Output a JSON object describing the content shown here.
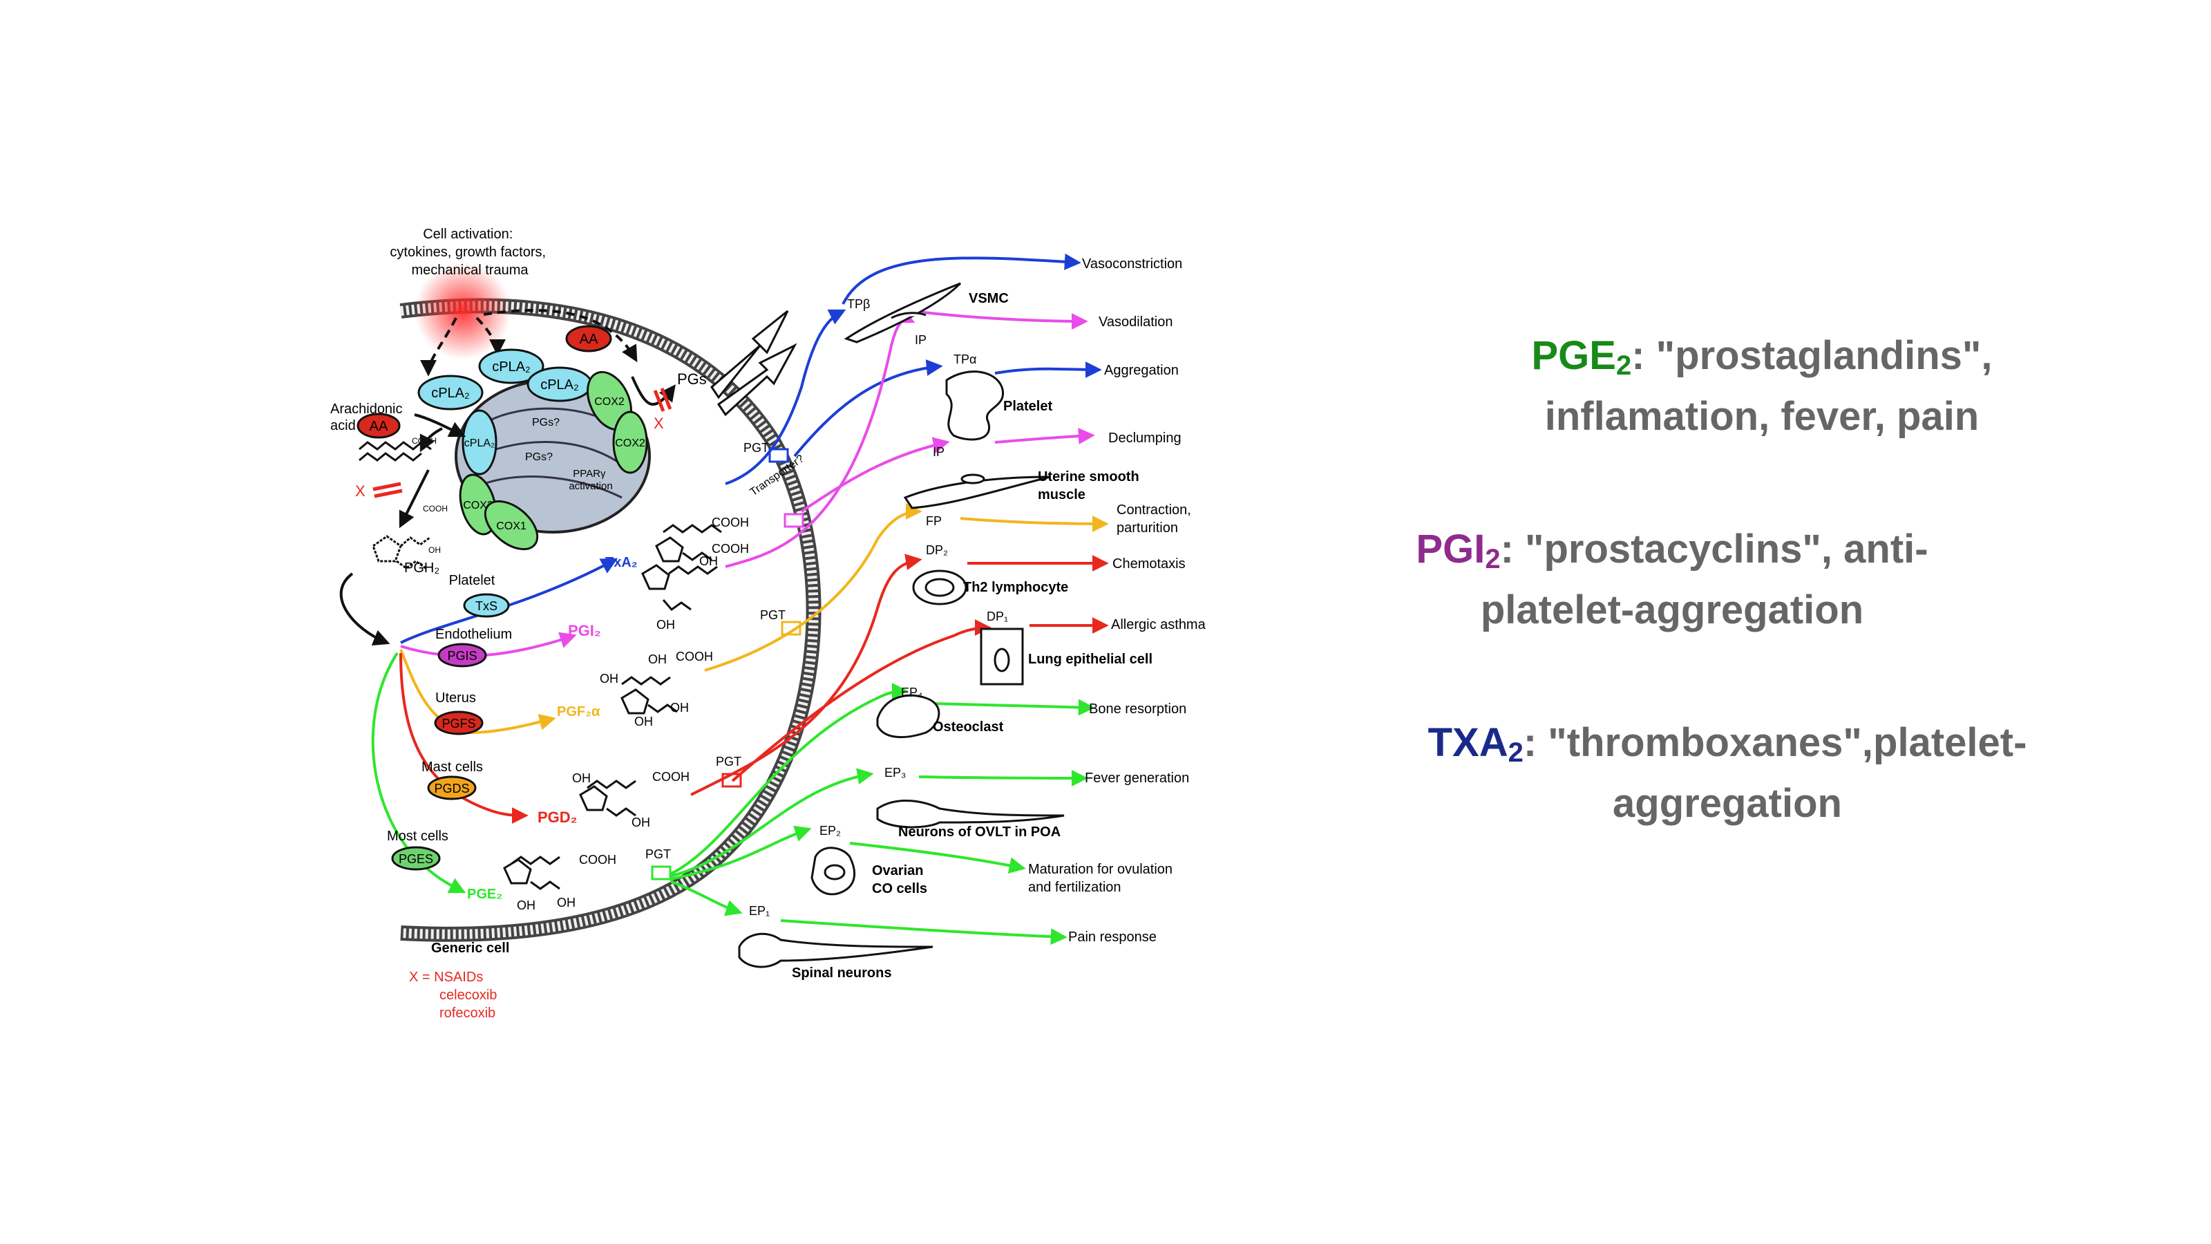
{
  "diagram": {
    "stimulus": [
      "Cell activation:",
      "cytokines, growth factors,",
      "mechanical trauma"
    ],
    "arachidonic_label": [
      "Arachidonic",
      "acid"
    ],
    "aa": "AA",
    "cpla2": "cPLA₂",
    "cox2": "COX2",
    "cox1": "COX1",
    "pgs_q": "PGs?",
    "ppar": [
      "PPARγ",
      "activation"
    ],
    "pgs": "PGs",
    "x_mark": "X",
    "pgh2": "PGH₂",
    "cooh": "COOH",
    "oh": "OH",
    "transporter": "Transporter?",
    "pgt": "PGT",
    "generic_cell": "Generic cell",
    "nsaids": [
      "X = NSAIDs",
      "celecoxib",
      "rofecoxib"
    ],
    "colors": {
      "blue": "#1b3fd6",
      "magenta": "#e94ce9",
      "yellow": "#f2b51c",
      "red": "#e8281f",
      "green": "#2ee62e",
      "cyan": "#8fe0f0",
      "enzyme_green": "#7fe07f",
      "aa_red": "#d9281e",
      "pgis": "#c43cc4",
      "pgfs": "#d9281e",
      "pgds": "#f2a51c",
      "pges": "#6ed36e"
    },
    "producers": [
      {
        "cell": "Platelet",
        "enzyme": "TxS",
        "product": "TxA₂"
      },
      {
        "cell": "Endothelium",
        "enzyme": "PGIS",
        "product": "PGI₂"
      },
      {
        "cell": "Uterus",
        "enzyme": "PGFS",
        "product": "PGF₂α"
      },
      {
        "cell": "Mast cells",
        "enzyme": "PGDS",
        "product": "PGD₂"
      },
      {
        "cell": "Most cells",
        "enzyme": "PGES",
        "product": "PGE₂"
      }
    ],
    "targets": {
      "vsmc": "VSMC",
      "tp_beta": "TPβ",
      "ip": "IP",
      "tp_alpha": "TPα",
      "platelet": "Platelet",
      "uterine": [
        "Uterine smooth",
        "muscle"
      ],
      "fp": "FP",
      "dp2": "DP₂",
      "th2": "Th2  lymphocyte",
      "dp1": "DP₁",
      "lung": "Lung epithelial cell",
      "ep4": "EP₄",
      "osteoclast": "Osteoclast",
      "ep3": "EP₃",
      "neurons": "Neurons of OVLT in POA",
      "ep2": "EP₂",
      "ovarian": [
        "Ovarian",
        "CO cells"
      ],
      "ep1": "EP₁",
      "spinal": "Spinal neurons"
    },
    "effects": {
      "vasoconstriction": "Vasoconstriction",
      "vasodilation": "Vasodilation",
      "aggregation": "Aggregation",
      "declumping": "Declumping",
      "contraction": [
        "Contraction,",
        "parturition"
      ],
      "chemotaxis": "Chemotaxis",
      "asthma": "Allergic asthma",
      "bone": "Bone resorption",
      "fever": "Fever generation",
      "maturation": [
        "Maturation for ovulation",
        "and fertilization"
      ],
      "pain": "Pain response"
    }
  },
  "notes": [
    {
      "term": "PGE",
      "sub": "2",
      "text": ": \"prostaglandins\",",
      "line2": "inflamation, fever, pain",
      "color": "#178a17"
    },
    {
      "term": "PGI",
      "sub": "2",
      "text": ": \"prostacyclins\", anti-",
      "line2": "platelet-aggregation",
      "color": "#8e2b8e"
    },
    {
      "term": "TXA",
      "sub": "2",
      "text": ": \"thromboxanes\",platelet-",
      "line2": "aggregation",
      "color": "#1b2a8a"
    }
  ]
}
